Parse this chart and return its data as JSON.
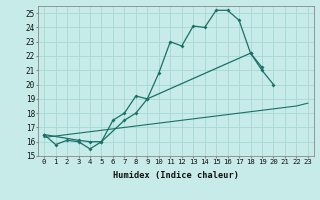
{
  "xlabel": "Humidex (Indice chaleur)",
  "background_color": "#c6ebe8",
  "grid_color": "#a8d8d4",
  "line_color": "#1a7068",
  "xlim": [
    -0.5,
    23.5
  ],
  "ylim": [
    15,
    25.5
  ],
  "yticks": [
    15,
    16,
    17,
    18,
    19,
    20,
    21,
    22,
    23,
    24,
    25
  ],
  "xticks": [
    0,
    1,
    2,
    3,
    4,
    5,
    6,
    7,
    8,
    9,
    10,
    11,
    12,
    13,
    14,
    15,
    16,
    17,
    18,
    19,
    20,
    21,
    22,
    23
  ],
  "series1_x": [
    0,
    1,
    2,
    3,
    4,
    5,
    6,
    7,
    8,
    9,
    10,
    11,
    12,
    13,
    14,
    15,
    16,
    17,
    18,
    19,
    20
  ],
  "series1_y": [
    16.5,
    15.8,
    16.1,
    16.0,
    15.5,
    16.0,
    17.5,
    18.0,
    19.2,
    19.0,
    20.8,
    23.0,
    22.7,
    24.1,
    24.0,
    25.2,
    25.2,
    24.5,
    22.2,
    21.0,
    20.0
  ],
  "series2_x": [
    0,
    3,
    4,
    5,
    7,
    8,
    9,
    18,
    19
  ],
  "series2_y": [
    16.5,
    16.1,
    16.0,
    16.0,
    17.5,
    18.0,
    19.0,
    22.2,
    21.2
  ],
  "series3_x": [
    0,
    1,
    2,
    3,
    4,
    5,
    6,
    7,
    8,
    9,
    10,
    11,
    12,
    13,
    14,
    15,
    16,
    17,
    18,
    19,
    20,
    21,
    22,
    23
  ],
  "series3_y": [
    16.3,
    16.4,
    16.5,
    16.6,
    16.7,
    16.8,
    16.9,
    17.0,
    17.1,
    17.2,
    17.3,
    17.4,
    17.5,
    17.6,
    17.7,
    17.8,
    17.9,
    18.0,
    18.1,
    18.2,
    18.3,
    18.4,
    18.5,
    18.7
  ]
}
